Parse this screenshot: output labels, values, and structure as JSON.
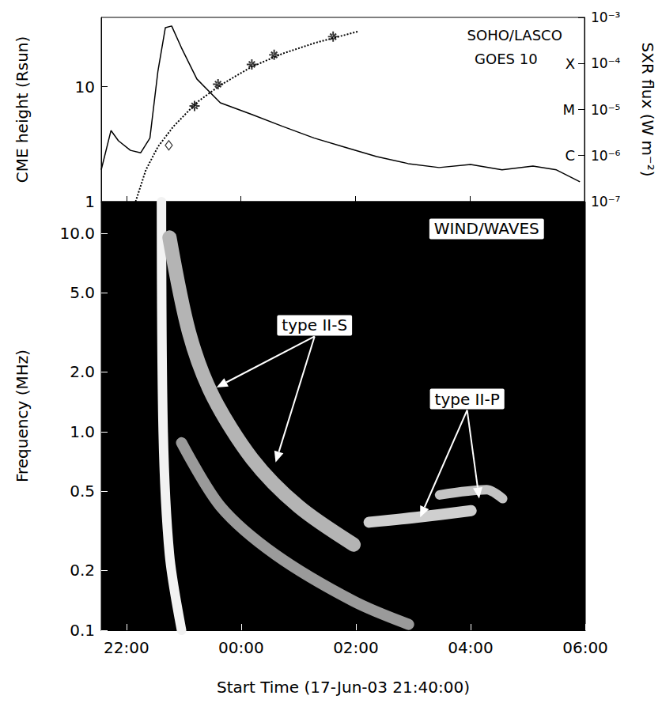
{
  "chart_data": [
    {
      "type": "line",
      "ylabel": "CME height (Rsun)",
      "y2label": "SXR flux (W m⁻²)",
      "log": "y",
      "tick_labels": "y",
      "xlim": [
        21.56,
        30.0
      ],
      "xticks": [
        {
          "value": 22,
          "label": "22:00"
        },
        {
          "value": 24,
          "label": "00:00"
        },
        {
          "value": 26,
          "label": "02:00"
        },
        {
          "value": 28,
          "label": "04:00"
        },
        {
          "value": 30,
          "label": "06:00"
        }
      ],
      "ylim": [
        1,
        40
      ],
      "yticks": [
        1,
        10
      ],
      "y2lim": [
        1e-07,
        0.001
      ],
      "y2ticks": [
        {
          "value": 1e-07,
          "label": "10⁻⁷"
        },
        {
          "value": 1e-06,
          "label": "10⁻⁶"
        },
        {
          "value": 1e-05,
          "label": "10⁻⁵"
        },
        {
          "value": 0.0001,
          "label": "10⁻⁴"
        },
        {
          "value": 0.001,
          "label": "10⁻³"
        }
      ],
      "class_labels": [
        {
          "value": 1e-06,
          "label": "C"
        },
        {
          "value": 1e-05,
          "label": "M"
        },
        {
          "value": 0.0001,
          "label": "X"
        }
      ],
      "series": [
        {
          "type": "line",
          "axis": "y2",
          "color": "#000000",
          "line_style": "solid",
          "x": [
            21.56,
            21.73,
            21.86,
            22.07,
            22.25,
            22.41,
            22.55,
            22.68,
            22.79,
            22.96,
            23.23,
            23.64,
            24.19,
            24.73,
            25.28,
            25.83,
            26.37,
            26.92,
            27.46,
            28.01,
            28.56,
            29.1,
            29.51,
            29.92
          ],
          "values": [
            4.9e-07,
            3.5e-06,
            2.1e-06,
            1.3e-06,
            1.15e-06,
            2.4e-06,
            6.8e-05,
            0.0006,
            0.00065,
            0.00022,
            4.6e-05,
            1.4e-05,
            7.8e-06,
            4.3e-06,
            2.4e-06,
            1.5e-06,
            9.5e-07,
            6.7e-07,
            5.5e-07,
            6.4e-07,
            4.9e-07,
            5.9e-07,
            4.9e-07,
            2.7e-07
          ]
        },
        {
          "type": "line",
          "color": "#000000",
          "line_style": "dotted",
          "x": [
            22.16,
            22.34,
            22.55,
            22.82,
            23.23,
            23.64,
            24.19,
            24.73,
            25.28,
            26.06
          ],
          "values": [
            1,
            1.89,
            3.0,
            4.5,
            7.3,
            10.3,
            14.9,
            19.4,
            23.9,
            30.3
          ]
        },
        {
          "type": "scatter",
          "color": "#000000",
          "marker": "diamond",
          "x": [
            22.74
          ],
          "values": [
            3.09
          ]
        },
        {
          "type": "scatter",
          "color": "#000000",
          "marker": "asterisk",
          "x": [
            23.19,
            23.6,
            24.19,
            24.58,
            25.61
          ],
          "values": [
            6.8,
            10.5,
            15.6,
            18.9,
            27.2
          ]
        }
      ],
      "annotations": [
        {
          "text": "SOHO/LASCO",
          "x": 28.78,
          "y": 28
        },
        {
          "text": "GOES 10",
          "x": 28.63,
          "y": 17.4
        }
      ]
    },
    {
      "type": "line",
      "xlabel": "Start Time (17-Jun-03 21:40:00)",
      "ylabel": "Frequency (MHz)",
      "log": "y",
      "xlim": [
        21.56,
        30.0
      ],
      "xticks": [
        {
          "value": 22,
          "label": "22:00"
        },
        {
          "value": 24,
          "label": "00:00"
        },
        {
          "value": 26,
          "label": "02:00"
        },
        {
          "value": 28,
          "label": "04:00"
        },
        {
          "value": 30,
          "label": "06:00"
        }
      ],
      "ylim": [
        0.1,
        14.4
      ],
      "yticks": [
        0.1,
        0.2,
        0.5,
        {
          "value": 1,
          "label": "1.0"
        },
        {
          "value": 2,
          "label": "2.0"
        },
        {
          "value": 5,
          "label": "5.0"
        },
        {
          "value": 10,
          "label": "10.0"
        }
      ],
      "series": [
        {
          "color": "#f2f2f2",
          "line_style": "solid",
          "x": [
            22.61,
            22.64,
            22.75,
            22.96
          ],
          "values": [
            14.4,
            1.0,
            0.24,
            0.1
          ]
        },
        {
          "color": "#b4b4b4",
          "line_style": "solid",
          "x": [
            22.75,
            23.09,
            23.5,
            24.19,
            25.0,
            25.96
          ],
          "values": [
            9.5,
            3.17,
            1.52,
            0.73,
            0.42,
            0.27
          ]
        },
        {
          "color": "#9a9a9a",
          "line_style": "solid",
          "x": [
            22.96,
            23.64,
            24.6,
            25.96,
            26.92
          ],
          "values": [
            0.88,
            0.42,
            0.24,
            0.14,
            0.107
          ]
        },
        {
          "color": "#cfcfcf",
          "line_style": "solid",
          "x": [
            26.23,
            27.05,
            28.01
          ],
          "values": [
            0.35,
            0.37,
            0.4
          ]
        },
        {
          "color": "#c4c4c4",
          "line_style": "solid",
          "x": [
            27.46,
            28.28,
            28.56
          ],
          "values": [
            0.48,
            0.51,
            0.46
          ]
        }
      ],
      "annotations": [
        {
          "text": "WIND/WAVES",
          "x": 28.28,
          "y": 10.5
        },
        {
          "text": "type II-S",
          "x": 25.28,
          "y": 3.43,
          "arrows": [
            [
              23.57,
              1.67
            ],
            [
              24.6,
              0.7
            ]
          ]
        },
        {
          "text": "type II-P",
          "x": 27.94,
          "y": 1.46,
          "arrows": [
            [
              27.12,
              0.37
            ],
            [
              28.15,
              0.46
            ]
          ]
        }
      ]
    }
  ]
}
